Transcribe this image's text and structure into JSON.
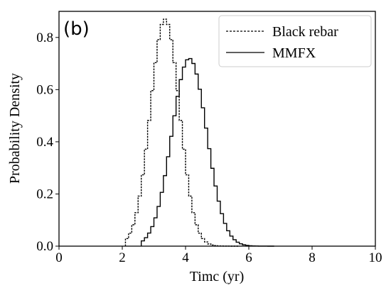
{
  "panel_label": "(b)",
  "chart_data": {
    "type": "line",
    "xlabel": "Timc (yr)",
    "ylabel": "Probability Density",
    "xlim": [
      0,
      10
    ],
    "ylim": [
      0,
      0.9
    ],
    "x_ticks": [
      0,
      2,
      4,
      6,
      8,
      10
    ],
    "y_ticks": [
      0.0,
      0.2,
      0.4,
      0.6,
      0.8
    ],
    "x_tick_labels": [
      "0",
      "2",
      "4",
      "6",
      "8",
      "10"
    ],
    "y_tick_labels": [
      "0.0",
      "0.2",
      "0.4",
      "0.6",
      "0.8"
    ],
    "grid": false,
    "legend_position": "top-right",
    "series": [
      {
        "name": "Black rebar",
        "style": "dashed",
        "color": "#000000",
        "mean": 3.35,
        "std": 0.46,
        "peak": 0.87,
        "x_range": [
          2.1,
          5.7
        ]
      },
      {
        "name": "MMFX",
        "style": "solid",
        "color": "#000000",
        "mean": 4.12,
        "std": 0.55,
        "peak": 0.72,
        "x_range": [
          2.6,
          6.8
        ]
      }
    ]
  }
}
